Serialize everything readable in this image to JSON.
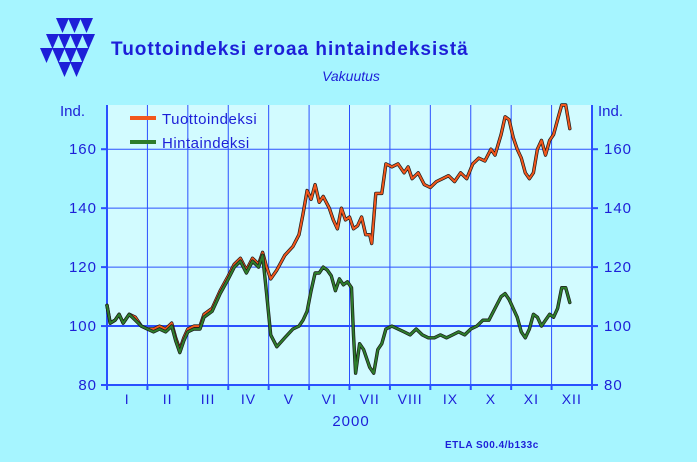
{
  "chart_data": {
    "type": "line",
    "title": "Tuottoindeksi eroaa hintaindeksistä",
    "subtitle": "Vakuutus",
    "ylabel_left": "Ind.",
    "ylabel_right": "Ind.",
    "xlabel": "2000",
    "source_note": "ETLA S00.4/b133c",
    "ylim": [
      80,
      175
    ],
    "yticks": [
      80,
      100,
      120,
      140,
      160
    ],
    "reference_line": 100,
    "grid": true,
    "legend_position": "top-left",
    "categories": [
      "I",
      "II",
      "III",
      "IV",
      "V",
      "VI",
      "VII",
      "VIII",
      "IX",
      "X",
      "XI",
      "XII"
    ],
    "x_range": [
      0,
      12
    ],
    "colors": {
      "background": "#a6f5ff",
      "plot_background": "#d2fbff",
      "grid": "#2a50ff",
      "axis_text": "#1d1fd8",
      "tuotto": "#f2571c",
      "hinta": "#2e7d2b"
    },
    "series": [
      {
        "name": "Tuottoindeksi",
        "color": "#f2571c",
        "points": [
          [
            0.0,
            107
          ],
          [
            0.08,
            101
          ],
          [
            0.2,
            102
          ],
          [
            0.3,
            104
          ],
          [
            0.4,
            101
          ],
          [
            0.55,
            104
          ],
          [
            0.7,
            103
          ],
          [
            0.85,
            100
          ],
          [
            1.0,
            99
          ],
          [
            1.15,
            99
          ],
          [
            1.3,
            100
          ],
          [
            1.45,
            99
          ],
          [
            1.6,
            101
          ],
          [
            1.7,
            96
          ],
          [
            1.8,
            92
          ],
          [
            1.9,
            96
          ],
          [
            2.0,
            99
          ],
          [
            2.15,
            100
          ],
          [
            2.3,
            100
          ],
          [
            2.4,
            104
          ],
          [
            2.6,
            106
          ],
          [
            2.8,
            112
          ],
          [
            3.0,
            117
          ],
          [
            3.15,
            121
          ],
          [
            3.3,
            123
          ],
          [
            3.45,
            119
          ],
          [
            3.6,
            123
          ],
          [
            3.75,
            121
          ],
          [
            3.85,
            125
          ],
          [
            3.95,
            120
          ],
          [
            4.05,
            116
          ],
          [
            4.2,
            119
          ],
          [
            4.4,
            124
          ],
          [
            4.6,
            127
          ],
          [
            4.75,
            131
          ],
          [
            4.85,
            138
          ],
          [
            4.95,
            146
          ],
          [
            5.05,
            143
          ],
          [
            5.15,
            148
          ],
          [
            5.25,
            142
          ],
          [
            5.35,
            144
          ],
          [
            5.5,
            140
          ],
          [
            5.6,
            136
          ],
          [
            5.7,
            133
          ],
          [
            5.8,
            140
          ],
          [
            5.9,
            136
          ],
          [
            6.0,
            137
          ],
          [
            6.1,
            133
          ],
          [
            6.2,
            134
          ],
          [
            6.3,
            137
          ],
          [
            6.4,
            131
          ],
          [
            6.5,
            131
          ],
          [
            6.55,
            128
          ],
          [
            6.65,
            145
          ],
          [
            6.8,
            145
          ],
          [
            6.9,
            155
          ],
          [
            7.05,
            154
          ],
          [
            7.2,
            155
          ],
          [
            7.35,
            152
          ],
          [
            7.45,
            154
          ],
          [
            7.55,
            150
          ],
          [
            7.7,
            152
          ],
          [
            7.85,
            148
          ],
          [
            8.0,
            147
          ],
          [
            8.15,
            149
          ],
          [
            8.3,
            150
          ],
          [
            8.45,
            151
          ],
          [
            8.6,
            149
          ],
          [
            8.75,
            152
          ],
          [
            8.9,
            150
          ],
          [
            9.05,
            155
          ],
          [
            9.2,
            157
          ],
          [
            9.35,
            156
          ],
          [
            9.5,
            160
          ],
          [
            9.6,
            158
          ],
          [
            9.75,
            165
          ],
          [
            9.85,
            171
          ],
          [
            9.95,
            170
          ],
          [
            10.05,
            164
          ],
          [
            10.15,
            160
          ],
          [
            10.25,
            157
          ],
          [
            10.35,
            152
          ],
          [
            10.45,
            150
          ],
          [
            10.55,
            152
          ],
          [
            10.65,
            160
          ],
          [
            10.75,
            163
          ],
          [
            10.85,
            158
          ],
          [
            10.95,
            163
          ],
          [
            11.05,
            165
          ],
          [
            11.15,
            170
          ],
          [
            11.25,
            175
          ],
          [
            11.35,
            175
          ],
          [
            11.45,
            167
          ]
        ]
      },
      {
        "name": "Hintaindeksi",
        "color": "#2e7d2b",
        "points": [
          [
            0.0,
            107
          ],
          [
            0.08,
            101
          ],
          [
            0.2,
            102
          ],
          [
            0.3,
            104
          ],
          [
            0.4,
            101
          ],
          [
            0.55,
            104
          ],
          [
            0.7,
            102
          ],
          [
            0.85,
            100
          ],
          [
            1.0,
            99
          ],
          [
            1.15,
            98
          ],
          [
            1.3,
            99
          ],
          [
            1.45,
            98
          ],
          [
            1.6,
            100
          ],
          [
            1.7,
            95
          ],
          [
            1.8,
            91
          ],
          [
            1.9,
            95
          ],
          [
            2.0,
            98
          ],
          [
            2.15,
            99
          ],
          [
            2.3,
            99
          ],
          [
            2.4,
            103
          ],
          [
            2.6,
            105
          ],
          [
            2.8,
            111
          ],
          [
            3.0,
            116
          ],
          [
            3.15,
            120
          ],
          [
            3.3,
            122
          ],
          [
            3.45,
            118
          ],
          [
            3.6,
            122
          ],
          [
            3.75,
            120
          ],
          [
            3.85,
            124
          ],
          [
            3.95,
            111
          ],
          [
            4.05,
            97
          ],
          [
            4.2,
            93
          ],
          [
            4.4,
            96
          ],
          [
            4.6,
            99
          ],
          [
            4.75,
            100
          ],
          [
            4.85,
            102
          ],
          [
            4.95,
            105
          ],
          [
            5.05,
            112
          ],
          [
            5.15,
            118
          ],
          [
            5.25,
            118
          ],
          [
            5.35,
            120
          ],
          [
            5.45,
            119
          ],
          [
            5.55,
            117
          ],
          [
            5.65,
            112
          ],
          [
            5.75,
            116
          ],
          [
            5.85,
            114
          ],
          [
            5.95,
            115
          ],
          [
            6.05,
            113
          ],
          [
            6.1,
            97
          ],
          [
            6.15,
            84
          ],
          [
            6.25,
            94
          ],
          [
            6.35,
            92
          ],
          [
            6.5,
            86
          ],
          [
            6.6,
            84
          ],
          [
            6.7,
            92
          ],
          [
            6.8,
            94
          ],
          [
            6.9,
            99
          ],
          [
            7.05,
            100
          ],
          [
            7.2,
            99
          ],
          [
            7.35,
            98
          ],
          [
            7.5,
            97
          ],
          [
            7.65,
            99
          ],
          [
            7.8,
            97
          ],
          [
            7.95,
            96
          ],
          [
            8.1,
            96
          ],
          [
            8.25,
            97
          ],
          [
            8.4,
            96
          ],
          [
            8.55,
            97
          ],
          [
            8.7,
            98
          ],
          [
            8.85,
            97
          ],
          [
            9.0,
            99
          ],
          [
            9.15,
            100
          ],
          [
            9.3,
            102
          ],
          [
            9.45,
            102
          ],
          [
            9.6,
            106
          ],
          [
            9.75,
            110
          ],
          [
            9.85,
            111
          ],
          [
            9.95,
            109
          ],
          [
            10.05,
            106
          ],
          [
            10.15,
            103
          ],
          [
            10.25,
            98
          ],
          [
            10.35,
            96
          ],
          [
            10.45,
            99
          ],
          [
            10.55,
            104
          ],
          [
            10.65,
            103
          ],
          [
            10.75,
            100
          ],
          [
            10.85,
            102
          ],
          [
            10.95,
            104
          ],
          [
            11.05,
            103
          ],
          [
            11.15,
            106
          ],
          [
            11.25,
            113
          ],
          [
            11.35,
            113
          ],
          [
            11.45,
            108
          ]
        ]
      }
    ]
  },
  "icons": [
    "etla-logo-icon"
  ]
}
